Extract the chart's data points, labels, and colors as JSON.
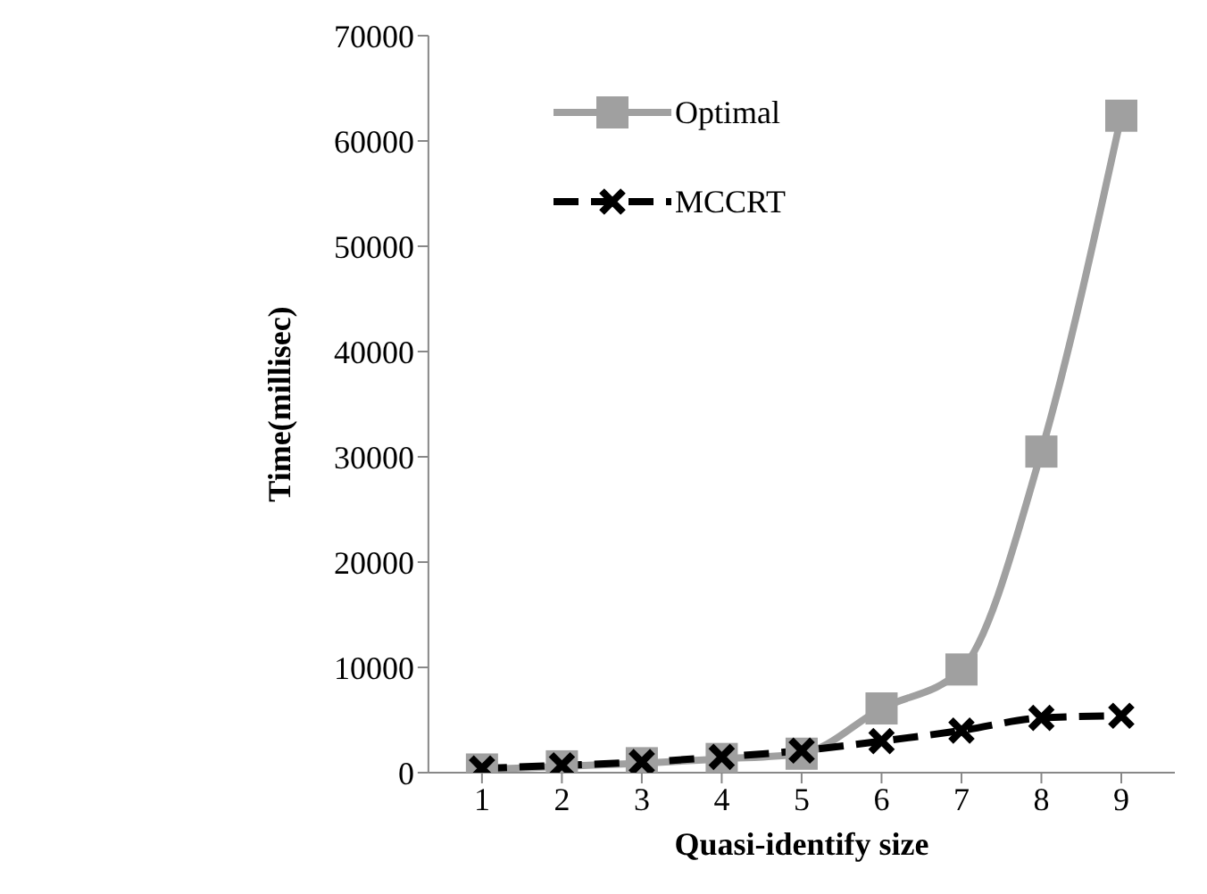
{
  "chart_data": {
    "type": "line",
    "xlabel": "Quasi-identify size",
    "ylabel": "Time(millisec)",
    "categories": [
      "1",
      "2",
      "3",
      "4",
      "5",
      "6",
      "7",
      "8",
      "9"
    ],
    "ylim": [
      0,
      70000
    ],
    "yticks": [
      0,
      10000,
      20000,
      30000,
      40000,
      50000,
      60000,
      70000
    ],
    "grid": false,
    "legend": "top",
    "series": [
      {
        "name": "Optimal",
        "color": "#a0a0a0",
        "marker": "square",
        "line_style": "solid",
        "values": [
          300,
          600,
          900,
          1300,
          1800,
          6100,
          9800,
          30500,
          62400
        ]
      },
      {
        "name": "MCCRT",
        "color": "#000000",
        "marker": "cross",
        "line_style": "dashed",
        "values": [
          400,
          700,
          1000,
          1500,
          2100,
          3000,
          4000,
          5200,
          5400
        ]
      }
    ]
  }
}
